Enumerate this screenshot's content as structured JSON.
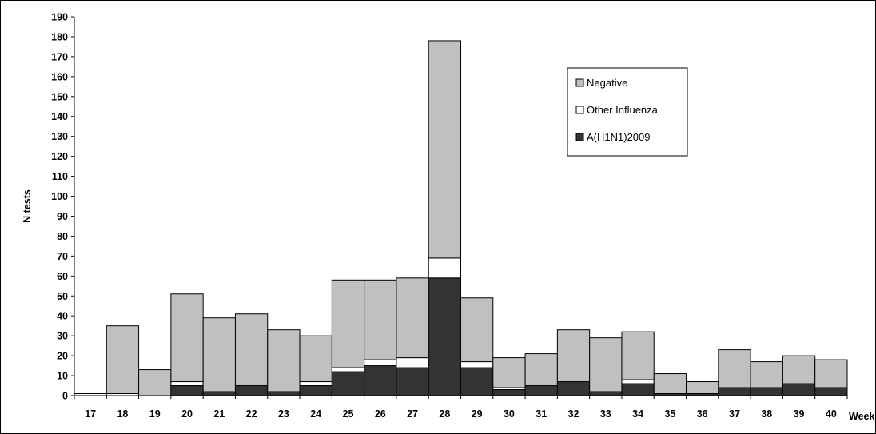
{
  "chart_data": {
    "type": "bar",
    "stacked": true,
    "xlabel": "Week",
    "ylabel": "N tests",
    "ylim": [
      0,
      190
    ],
    "ytick_step": 10,
    "grid": false,
    "legend_position": "top-right",
    "categories": [
      "17",
      "18",
      "19",
      "20",
      "21",
      "22",
      "23",
      "24",
      "25",
      "26",
      "27",
      "28",
      "29",
      "30",
      "31",
      "32",
      "33",
      "34",
      "35",
      "36",
      "37",
      "38",
      "39",
      "40"
    ],
    "series": [
      {
        "name": "A(H1N1)2009",
        "color": "#333333",
        "values": [
          0,
          0,
          0,
          5,
          2,
          5,
          2,
          5,
          12,
          15,
          14,
          59,
          14,
          3,
          5,
          7,
          2,
          6,
          1,
          1,
          4,
          4,
          6,
          4
        ]
      },
      {
        "name": "Other Influenza",
        "color": "#ffffff",
        "values": [
          1,
          1,
          0,
          2,
          0,
          0,
          0,
          2,
          2,
          3,
          5,
          10,
          3,
          1,
          0,
          0,
          0,
          2,
          0,
          0,
          0,
          0,
          0,
          0
        ]
      },
      {
        "name": "Negative",
        "color": "#c0c0c0",
        "values": [
          0,
          34,
          13,
          44,
          37,
          36,
          31,
          23,
          44,
          40,
          40,
          109,
          32,
          15,
          16,
          26,
          27,
          24,
          10,
          6,
          19,
          13,
          14,
          14
        ]
      }
    ],
    "legend_order": [
      "Negative",
      "Other Influenza",
      "A(H1N1)2009"
    ]
  }
}
